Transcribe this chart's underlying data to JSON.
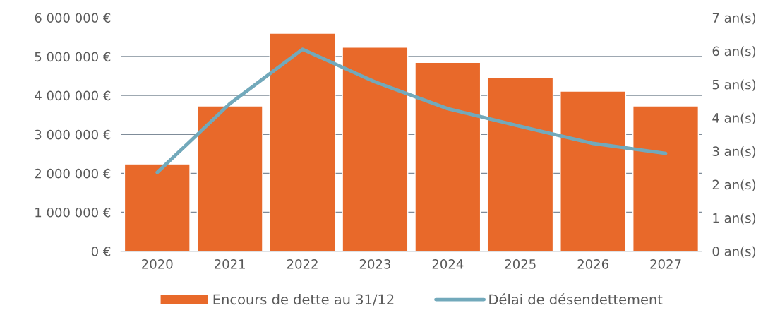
{
  "chart_data": {
    "type": "bar",
    "categories": [
      "2020",
      "2021",
      "2022",
      "2023",
      "2024",
      "2025",
      "2026",
      "2027"
    ],
    "series": [
      {
        "name": "Encours de dette au 31/12",
        "color": "#e8692a",
        "values": [
          2240000,
          3730000,
          5600000,
          5240000,
          4850000,
          4470000,
          4110000,
          3730000
        ]
      },
      {
        "name": "Délai de désendettement",
        "type": "line",
        "axis": "y2",
        "color": "#72a9bb",
        "values": [
          2.36,
          4.42,
          6.05,
          5.07,
          4.27,
          3.74,
          3.23,
          2.93
        ]
      }
    ],
    "ylim": [
      0,
      6000000
    ],
    "yticks": [
      {
        "value": 0,
        "label": "0 €"
      },
      {
        "value": 1000000,
        "label": "1 000 000 €"
      },
      {
        "value": 2000000,
        "label": "2 000 000 €"
      },
      {
        "value": 3000000,
        "label": "3 000 000 €"
      },
      {
        "value": 4000000,
        "label": "4 000 000 €"
      },
      {
        "value": 5000000,
        "label": "5 000 000 €"
      },
      {
        "value": 6000000,
        "label": "6 000 000 €"
      }
    ],
    "y2lim": [
      0,
      7
    ],
    "y2ticks": [
      {
        "value": 0,
        "label": "0 an(s)"
      },
      {
        "value": 1,
        "label": "1 an(s)"
      },
      {
        "value": 2,
        "label": "2 an(s)"
      },
      {
        "value": 3,
        "label": "3 an(s)"
      },
      {
        "value": 4,
        "label": "4 an(s)"
      },
      {
        "value": 5,
        "label": "5 an(s)"
      },
      {
        "value": 6,
        "label": "6 an(s)"
      },
      {
        "value": 7,
        "label": "7 an(s)"
      }
    ],
    "grid": "y",
    "legend": "bottom",
    "marker": "none",
    "line_style": "solid"
  }
}
